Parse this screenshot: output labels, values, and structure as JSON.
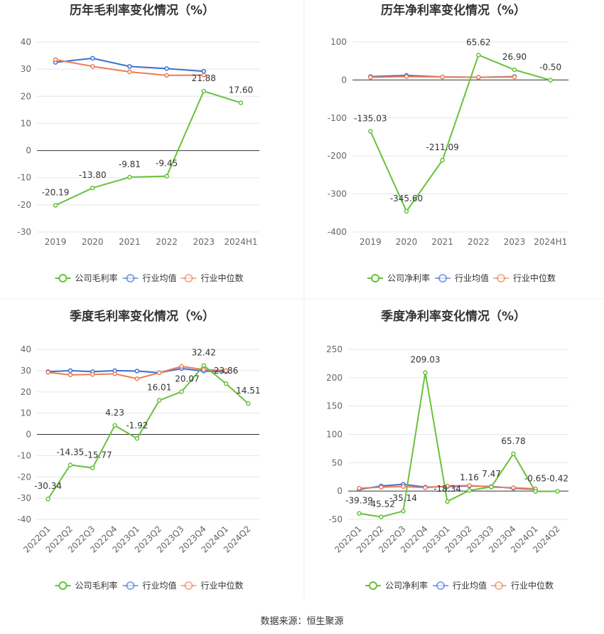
{
  "source_note": "数据来源：恒生聚源",
  "colors": {
    "company": "#67c23a",
    "industry_avg": "#3a6fd8",
    "industry_median": "#ef7c54",
    "axis": "#333333",
    "tick_label": "#666666",
    "grid": "#e6e6e6"
  },
  "chart_data": [
    {
      "type": "line",
      "title": "历年毛利率变化情况（%）",
      "categories": [
        "2019",
        "2020",
        "2021",
        "2022",
        "2023",
        "2024H1"
      ],
      "ylim": [
        -30,
        40
      ],
      "yticks": [
        -30,
        -20,
        -10,
        0,
        10,
        20,
        30,
        40
      ],
      "grid": true,
      "legend": "bottom",
      "series": [
        {
          "name": "公司毛利率",
          "values": [
            -20.19,
            -13.8,
            -9.81,
            -9.45,
            21.88,
            17.6
          ],
          "labels": [
            "-20.19",
            "-13.80",
            "-9.81",
            "-9.45",
            "21.88",
            "17.60"
          ],
          "color_key": "company"
        },
        {
          "name": "行业均值",
          "values": [
            32.5,
            34.0,
            31.0,
            30.2,
            29.2,
            null
          ],
          "color_key": "industry_avg"
        },
        {
          "name": "行业中位数",
          "values": [
            33.5,
            31.0,
            29.0,
            27.7,
            27.8,
            null
          ],
          "color_key": "industry_median"
        }
      ]
    },
    {
      "type": "line",
      "title": "历年净利率变化情况（%）",
      "categories": [
        "2019",
        "2020",
        "2021",
        "2022",
        "2023",
        "2024H1"
      ],
      "ylim": [
        -400,
        100
      ],
      "yticks": [
        -400,
        -300,
        -200,
        -100,
        0,
        100
      ],
      "grid": true,
      "legend": "bottom",
      "series": [
        {
          "name": "公司净利率",
          "values": [
            -135.03,
            -345.6,
            -211.09,
            65.62,
            26.9,
            -0.5
          ],
          "labels": [
            "-135.03",
            "-345.60",
            "-211.09",
            "65.62",
            "26.90",
            "-0.50"
          ],
          "color_key": "company"
        },
        {
          "name": "行业均值",
          "values": [
            9,
            12,
            8,
            7,
            9,
            null
          ],
          "color_key": "industry_avg"
        },
        {
          "name": "行业中位数",
          "values": [
            7,
            9,
            8,
            7,
            8,
            null
          ],
          "color_key": "industry_median"
        }
      ]
    },
    {
      "type": "line",
      "title": "季度毛利率变化情况（%）",
      "categories": [
        "2022Q1",
        "2022Q2",
        "2022Q3",
        "2022Q4",
        "2023Q1",
        "2023Q2",
        "2023Q3",
        "2023Q4",
        "2024Q1",
        "2024Q2"
      ],
      "ylim": [
        -40,
        40
      ],
      "yticks": [
        -40,
        -30,
        -20,
        -10,
        0,
        10,
        20,
        30,
        40
      ],
      "grid": true,
      "legend": "bottom",
      "series": [
        {
          "name": "公司毛利率",
          "values": [
            -30.34,
            -14.35,
            -15.77,
            4.23,
            -1.92,
            16.01,
            20.07,
            32.42,
            23.86,
            14.51
          ],
          "labels": [
            "-30.34",
            "-14.35",
            "-15.77",
            "4.23",
            "-1.92",
            "16.01",
            "20.07",
            "32.42",
            "23.86",
            "14.51"
          ],
          "color_key": "company"
        },
        {
          "name": "行业均值",
          "values": [
            29.5,
            30.0,
            29.5,
            30.0,
            29.8,
            29.0,
            31.0,
            29.8,
            29.5,
            null
          ],
          "color_key": "industry_avg"
        },
        {
          "name": "行业中位数",
          "values": [
            29.2,
            28.0,
            28.2,
            28.5,
            26.2,
            29.0,
            32.0,
            30.5,
            30.0,
            null
          ],
          "color_key": "industry_median"
        }
      ]
    },
    {
      "type": "line",
      "title": "季度净利率变化情况（%）",
      "categories": [
        "2022Q1",
        "2022Q2",
        "2022Q3",
        "2022Q4",
        "2023Q1",
        "2023Q2",
        "2023Q3",
        "2023Q4",
        "2024Q1",
        "2024Q2"
      ],
      "ylim": [
        -50,
        250
      ],
      "yticks": [
        -50,
        0,
        50,
        100,
        150,
        200,
        250
      ],
      "grid": true,
      "legend": "bottom",
      "series": [
        {
          "name": "公司净利率",
          "values": [
            -39.39,
            -45.52,
            -35.14,
            209.03,
            -18.34,
            1.16,
            7.47,
            65.78,
            -0.65,
            -0.42
          ],
          "labels": [
            "-39.39",
            "-45.52",
            "-35.14",
            "209.03",
            "-18.34",
            "1.16",
            "7.47",
            "65.78",
            "-0.65",
            "-0.42"
          ],
          "color_key": "company"
        },
        {
          "name": "行业均值",
          "values": [
            3,
            9,
            12,
            7,
            8,
            9,
            8,
            5,
            3,
            null
          ],
          "color_key": "industry_avg"
        },
        {
          "name": "行业中位数",
          "values": [
            5,
            7,
            8,
            6,
            9,
            10,
            7,
            6,
            4,
            null
          ],
          "color_key": "industry_median"
        }
      ]
    }
  ]
}
